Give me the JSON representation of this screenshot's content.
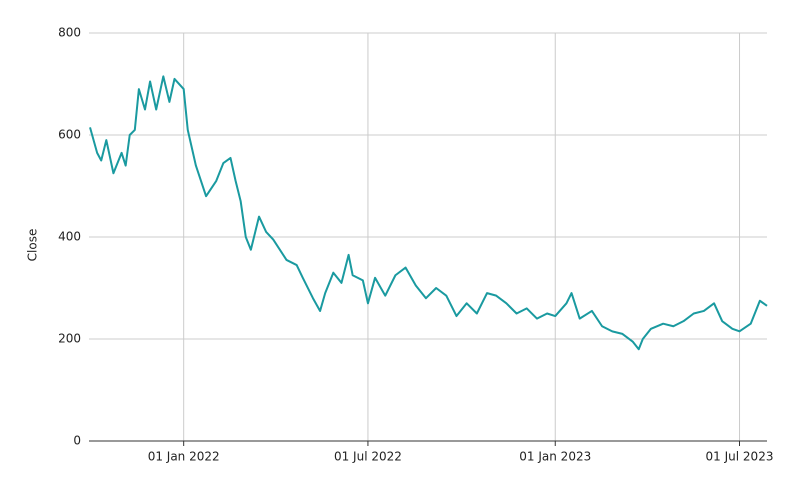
{
  "chart_data": {
    "type": "line",
    "y_label": "Close",
    "color": "#1a9aa0",
    "grid": true,
    "x": [
      "2021-10-01",
      "2021-10-08",
      "2021-10-12",
      "2021-10-17",
      "2021-10-24",
      "2021-11-01",
      "2021-11-05",
      "2021-11-09",
      "2021-11-14",
      "2021-11-18",
      "2021-11-24",
      "2021-11-29",
      "2021-12-05",
      "2021-12-12",
      "2021-12-18",
      "2021-12-23",
      "2022-01-01",
      "2022-01-05",
      "2022-01-13",
      "2022-01-23",
      "2022-02-02",
      "2022-02-09",
      "2022-02-16",
      "2022-02-21",
      "2022-02-26",
      "2022-03-03",
      "2022-03-08",
      "2022-03-16",
      "2022-03-23",
      "2022-03-30",
      "2022-04-12",
      "2022-04-22",
      "2022-04-28",
      "2022-05-08",
      "2022-05-15",
      "2022-05-20",
      "2022-05-28",
      "2022-06-05",
      "2022-06-12",
      "2022-06-16",
      "2022-06-26",
      "2022-07-01",
      "2022-07-08",
      "2022-07-18",
      "2022-07-28",
      "2022-08-07",
      "2022-08-17",
      "2022-08-27",
      "2022-09-06",
      "2022-09-16",
      "2022-09-26",
      "2022-10-06",
      "2022-10-16",
      "2022-10-26",
      "2022-11-04",
      "2022-11-14",
      "2022-11-24",
      "2022-12-04",
      "2022-12-14",
      "2022-12-24",
      "2023-01-01",
      "2023-01-12",
      "2023-01-17",
      "2023-01-25",
      "2023-02-06",
      "2023-02-16",
      "2023-02-26",
      "2023-03-08",
      "2023-03-18",
      "2023-03-24",
      "2023-03-28",
      "2023-04-05",
      "2023-04-17",
      "2023-04-27",
      "2023-05-07",
      "2023-05-17",
      "2023-05-27",
      "2023-06-06",
      "2023-06-14",
      "2023-06-24",
      "2023-07-01",
      "2023-07-12",
      "2023-07-21",
      "2023-07-28"
    ],
    "values": [
      615,
      565,
      550,
      590,
      525,
      565,
      540,
      600,
      610,
      690,
      650,
      705,
      650,
      715,
      665,
      710,
      690,
      610,
      540,
      480,
      510,
      545,
      555,
      510,
      470,
      400,
      375,
      440,
      410,
      395,
      355,
      345,
      320,
      280,
      255,
      290,
      330,
      310,
      365,
      325,
      315,
      270,
      320,
      285,
      325,
      340,
      305,
      280,
      300,
      285,
      245,
      270,
      250,
      290,
      285,
      270,
      250,
      260,
      240,
      250,
      245,
      270,
      290,
      240,
      255,
      225,
      215,
      210,
      195,
      180,
      200,
      220,
      230,
      225,
      235,
      250,
      255,
      270,
      235,
      220,
      215,
      230,
      275,
      265
    ],
    "xlim": [
      "2021-09-30",
      "2023-07-28"
    ],
    "xticks": [
      {
        "value": "2022-01-01",
        "label": "01 Jan 2022"
      },
      {
        "value": "2022-07-01",
        "label": "01 Jul 2022"
      },
      {
        "value": "2023-01-01",
        "label": "01 Jan 2023"
      },
      {
        "value": "2023-07-01",
        "label": "01 Jul 2023"
      }
    ],
    "ylim": [
      0,
      800
    ],
    "yticks": [
      0,
      200,
      400,
      600,
      800
    ]
  }
}
